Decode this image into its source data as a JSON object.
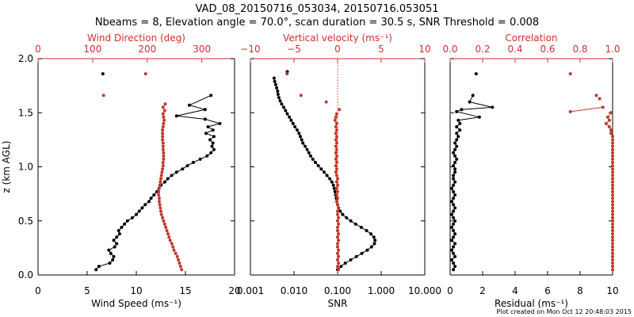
{
  "header": {
    "title_line1": "VAD_08_20150716_053034, 20150716.053051",
    "title_line2": "Nbeams = 8, Elevation angle = 70.0°, scan duration = 30.5 s, SNR Threshold = 0.008"
  },
  "footer": {
    "text": "Plot created on Mon Oct 12 20:48:03 2015"
  },
  "colors": {
    "black": "#000000",
    "red": "#c0392b",
    "redtop": "#d62d2d",
    "dotted": "#e03030"
  },
  "chart_data": [
    {
      "type": "line",
      "id": "panel1",
      "ylabel": "z (km AGL)",
      "ylim": [
        0,
        2.0
      ],
      "yticks": [
        0.0,
        0.5,
        1.0,
        1.5,
        2.0
      ],
      "ytick_labels": [
        "0.0",
        "0.5",
        "1.0",
        "1.5",
        "2.0"
      ],
      "bottom_axis": {
        "label": "Wind Speed (ms⁻¹)",
        "lim": [
          0,
          20
        ],
        "ticks": [
          0,
          5,
          10,
          15,
          20
        ],
        "tick_labels": [
          "0",
          "5",
          "10",
          "15",
          "20"
        ]
      },
      "top_axis": {
        "label": "Wind Direction (deg)",
        "lim": [
          0,
          360
        ],
        "ticks": [
          0,
          100,
          200,
          300
        ],
        "tick_labels": [
          "0",
          "100",
          "200",
          "300"
        ]
      },
      "series": [
        {
          "name": "Wind Speed",
          "axis": "bottom",
          "color": "black",
          "connected": true,
          "x": [
            5.9,
            6.2,
            7.3,
            7.6,
            7.7,
            7.4,
            7.2,
            7.8,
            8.0,
            7.7,
            8.0,
            8.3,
            8.2,
            8.5,
            8.8,
            9.1,
            9.6,
            10.0,
            10.3,
            10.6,
            10.9,
            11.3,
            11.5,
            11.8,
            12.1,
            12.3,
            12.5,
            12.9,
            13.2,
            13.6,
            14.1,
            14.7,
            15.2,
            15.8,
            16.5,
            17.2,
            17.6,
            17.9,
            17.7,
            17.8,
            17.5,
            17.9,
            17.1,
            17.8,
            17.3,
            18.5,
            17.0,
            14.1,
            17.0,
            15.4,
            17.6
          ],
          "y": [
            0.05,
            0.08,
            0.11,
            0.14,
            0.17,
            0.2,
            0.23,
            0.26,
            0.29,
            0.32,
            0.35,
            0.38,
            0.41,
            0.44,
            0.47,
            0.5,
            0.53,
            0.56,
            0.59,
            0.62,
            0.65,
            0.68,
            0.71,
            0.74,
            0.77,
            0.8,
            0.83,
            0.86,
            0.89,
            0.92,
            0.95,
            0.98,
            1.01,
            1.04,
            1.07,
            1.1,
            1.13,
            1.16,
            1.19,
            1.22,
            1.25,
            1.28,
            1.31,
            1.34,
            1.37,
            1.4,
            1.44,
            1.47,
            1.53,
            1.57,
            1.66
          ]
        },
        {
          "name": "Wind Speed (isolated)",
          "axis": "bottom",
          "color": "black",
          "connected": false,
          "x": [
            6.6
          ],
          "y": [
            1.86
          ]
        },
        {
          "name": "Wind Direction",
          "axis": "top",
          "color": "red",
          "connected": true,
          "x": [
            263,
            261,
            259,
            257,
            255,
            252,
            249,
            247,
            245,
            242,
            240,
            238,
            236,
            234,
            232,
            230,
            228,
            226,
            225,
            224,
            223,
            222,
            222,
            221,
            221,
            222,
            223,
            224,
            225,
            226,
            227,
            228,
            229,
            229,
            230,
            230,
            230,
            229,
            229,
            229,
            228,
            228,
            228,
            228,
            229,
            230,
            231,
            230,
            229,
            232,
            229,
            233
          ],
          "y": [
            0.05,
            0.08,
            0.11,
            0.14,
            0.17,
            0.2,
            0.23,
            0.26,
            0.29,
            0.32,
            0.35,
            0.38,
            0.41,
            0.44,
            0.47,
            0.5,
            0.53,
            0.56,
            0.59,
            0.62,
            0.65,
            0.68,
            0.71,
            0.74,
            0.77,
            0.8,
            0.83,
            0.86,
            0.89,
            0.92,
            0.95,
            0.98,
            1.01,
            1.04,
            1.07,
            1.1,
            1.13,
            1.16,
            1.19,
            1.22,
            1.25,
            1.28,
            1.31,
            1.34,
            1.37,
            1.4,
            1.43,
            1.46,
            1.49,
            1.52,
            1.55,
            1.58
          ]
        },
        {
          "name": "Wind Direction (isolated)",
          "axis": "top",
          "color": "red",
          "connected": false,
          "x": [
            120,
            197
          ],
          "y": [
            1.66,
            1.86
          ]
        }
      ]
    },
    {
      "type": "line",
      "id": "panel2",
      "ylim": [
        0,
        2.0
      ],
      "bottom_axis": {
        "label": "SNR",
        "scale": "log",
        "lim": [
          0.001,
          10.0
        ],
        "ticks": [
          0.001,
          0.01,
          0.1,
          1.0,
          10.0
        ],
        "tick_labels": [
          "0.001",
          "0.010",
          "0.100",
          "1.000",
          "10.000"
        ]
      },
      "top_axis": {
        "label": "Vertical velocity (ms⁻¹)",
        "lim": [
          -10,
          10
        ],
        "ticks": [
          -10,
          -5,
          0,
          5,
          10
        ],
        "tick_labels": [
          "−10",
          "−5",
          "0",
          "5",
          "10"
        ]
      },
      "series": [
        {
          "name": "SNR",
          "axis": "bottom",
          "color": "black",
          "connected": true,
          "x": [
            0.1,
            0.12,
            0.15,
            0.2,
            0.27,
            0.36,
            0.48,
            0.6,
            0.7,
            0.72,
            0.68,
            0.58,
            0.46,
            0.35,
            0.26,
            0.2,
            0.16,
            0.13,
            0.115,
            0.105,
            0.1,
            0.096,
            0.093,
            0.09,
            0.087,
            0.084,
            0.08,
            0.074,
            0.066,
            0.057,
            0.049,
            0.042,
            0.036,
            0.031,
            0.027,
            0.024,
            0.022,
            0.02,
            0.018,
            0.016,
            0.015,
            0.014,
            0.013,
            0.0118,
            0.0105,
            0.0095,
            0.0086,
            0.0078,
            0.007,
            0.0064,
            0.0058,
            0.0052,
            0.0048,
            0.0045,
            0.0043,
            0.0042,
            0.004,
            0.0038,
            0.0036,
            0.0035
          ],
          "y": [
            0.05,
            0.08,
            0.11,
            0.14,
            0.17,
            0.2,
            0.23,
            0.26,
            0.29,
            0.32,
            0.35,
            0.38,
            0.41,
            0.44,
            0.47,
            0.5,
            0.53,
            0.56,
            0.59,
            0.62,
            0.65,
            0.68,
            0.71,
            0.74,
            0.77,
            0.8,
            0.83,
            0.86,
            0.89,
            0.92,
            0.95,
            0.98,
            1.01,
            1.04,
            1.07,
            1.1,
            1.13,
            1.16,
            1.19,
            1.22,
            1.25,
            1.28,
            1.31,
            1.34,
            1.37,
            1.4,
            1.43,
            1.46,
            1.49,
            1.52,
            1.55,
            1.58,
            1.61,
            1.64,
            1.67,
            1.7,
            1.73,
            1.76,
            1.79,
            1.82
          ]
        },
        {
          "name": "SNR (isolated)",
          "axis": "bottom",
          "color": "black",
          "connected": false,
          "x": [
            0.007
          ],
          "y": [
            1.88
          ]
        },
        {
          "name": "Vertical velocity",
          "axis": "top",
          "color": "red",
          "connected": true,
          "x": [
            0.1,
            0.0,
            0.1,
            0.0,
            0.1,
            0.0,
            0.1,
            0.0,
            0.0,
            0.1,
            0.0,
            0.1,
            0.0,
            0.0,
            0.1,
            0.0,
            0.1,
            0.0,
            0.0,
            0.1,
            0.0,
            -0.1,
            0.0,
            -0.1,
            0.0,
            -0.1,
            0.0,
            -0.1,
            0.0,
            -0.1,
            -0.2,
            -0.1,
            -0.2,
            -0.1,
            -0.2,
            -0.1,
            -0.2,
            -0.1,
            -0.2,
            -0.1,
            -0.2,
            -0.1,
            -0.2,
            -0.1,
            -0.2,
            -0.1,
            -0.3,
            -0.2,
            -0.1
          ],
          "y": [
            0.05,
            0.08,
            0.11,
            0.14,
            0.17,
            0.2,
            0.23,
            0.26,
            0.29,
            0.32,
            0.35,
            0.38,
            0.41,
            0.44,
            0.47,
            0.5,
            0.53,
            0.56,
            0.59,
            0.62,
            0.65,
            0.68,
            0.71,
            0.74,
            0.77,
            0.8,
            0.83,
            0.86,
            0.89,
            0.92,
            0.95,
            0.98,
            1.01,
            1.04,
            1.07,
            1.1,
            1.13,
            1.16,
            1.19,
            1.22,
            1.25,
            1.28,
            1.31,
            1.34,
            1.37,
            1.4,
            1.43,
            1.46,
            1.49
          ]
        },
        {
          "name": "Vertical velocity (isolated)",
          "axis": "top",
          "color": "red",
          "connected": false,
          "x": [
            -4.2,
            -5.8,
            -1.3,
            0.2
          ],
          "y": [
            1.66,
            1.86,
            1.6,
            1.53
          ]
        },
        {
          "name": "Zero vertical velocity",
          "axis": "top",
          "color": "red",
          "style": "dotted",
          "connected": true,
          "x": [
            0,
            0
          ],
          "y": [
            0,
            2.0
          ]
        }
      ]
    },
    {
      "type": "line",
      "id": "panel3",
      "ylim": [
        0,
        2.0
      ],
      "bottom_axis": {
        "label": "Residual (ms⁻¹)",
        "lim": [
          0,
          10
        ],
        "ticks": [
          0,
          2,
          4,
          6,
          8,
          10
        ],
        "tick_labels": [
          "0",
          "2",
          "4",
          "6",
          "8",
          "10"
        ]
      },
      "top_axis": {
        "label": "Correlation",
        "lim": [
          0,
          1.0
        ],
        "ticks": [
          0.0,
          0.2,
          0.4,
          0.6,
          0.8,
          1.0
        ],
        "tick_labels": [
          "0.0",
          "0.2",
          "0.4",
          "0.6",
          "0.8",
          "1.0"
        ]
      },
      "series": [
        {
          "name": "Residual",
          "axis": "bottom",
          "color": "black",
          "connected": true,
          "x": [
            0.2,
            0.3,
            0.2,
            0.1,
            0.3,
            0.2,
            0.1,
            0.2,
            0.3,
            0.1,
            0.2,
            0.3,
            0.2,
            0.1,
            0.2,
            0.3,
            0.2,
            0.1,
            0.2,
            0.3,
            0.2,
            0.1,
            0.2,
            0.3,
            0.2,
            0.1,
            0.2,
            0.3,
            0.2,
            0.2,
            0.3,
            0.3,
            0.2,
            0.3,
            0.4,
            0.3,
            0.2,
            0.3,
            0.4,
            0.3,
            0.4,
            0.5,
            0.4,
            0.6,
            0.4,
            0.6,
            0.5,
            1.8,
            0.4,
            0.7,
            2.6,
            1.2,
            1.4
          ],
          "y": [
            0.05,
            0.08,
            0.11,
            0.14,
            0.17,
            0.2,
            0.23,
            0.26,
            0.29,
            0.32,
            0.35,
            0.38,
            0.41,
            0.44,
            0.47,
            0.5,
            0.53,
            0.56,
            0.59,
            0.62,
            0.65,
            0.68,
            0.71,
            0.74,
            0.77,
            0.8,
            0.83,
            0.86,
            0.89,
            0.92,
            0.95,
            0.98,
            1.01,
            1.04,
            1.07,
            1.1,
            1.13,
            1.16,
            1.19,
            1.22,
            1.25,
            1.28,
            1.31,
            1.34,
            1.37,
            1.4,
            1.43,
            1.46,
            1.51,
            1.53,
            1.55,
            1.6,
            1.66
          ]
        },
        {
          "name": "Residual (isolated)",
          "axis": "bottom",
          "color": "black",
          "connected": false,
          "x": [
            1.6
          ],
          "y": [
            1.86
          ]
        },
        {
          "name": "Correlation",
          "axis": "top",
          "color": "red",
          "connected": true,
          "x": [
            1.0,
            1.0,
            1.0,
            1.0,
            1.0,
            1.0,
            1.0,
            1.0,
            1.0,
            1.0,
            1.0,
            1.0,
            1.0,
            1.0,
            1.0,
            1.0,
            1.0,
            1.0,
            1.0,
            1.0,
            1.0,
            1.0,
            1.0,
            1.0,
            1.0,
            1.0,
            1.0,
            1.0,
            1.0,
            1.0,
            1.0,
            1.0,
            1.0,
            1.0,
            1.0,
            1.0,
            1.0,
            1.0,
            1.0,
            1.0,
            1.0,
            1.0,
            0.99,
            0.99,
            0.98,
            0.96,
            0.98,
            0.97,
            0.99
          ],
          "y": [
            0.05,
            0.08,
            0.11,
            0.14,
            0.17,
            0.2,
            0.23,
            0.26,
            0.29,
            0.32,
            0.35,
            0.38,
            0.41,
            0.44,
            0.47,
            0.5,
            0.53,
            0.56,
            0.59,
            0.62,
            0.65,
            0.68,
            0.71,
            0.74,
            0.77,
            0.8,
            0.83,
            0.86,
            0.89,
            0.92,
            0.95,
            0.98,
            1.01,
            1.04,
            1.07,
            1.1,
            1.13,
            1.16,
            1.19,
            1.22,
            1.25,
            1.28,
            1.31,
            1.34,
            1.37,
            1.4,
            1.43,
            1.46,
            1.5
          ]
        },
        {
          "name": "Correlation (segment)",
          "axis": "top",
          "color": "red",
          "connected": true,
          "x": [
            0.74,
            0.94
          ],
          "y": [
            1.51,
            1.55
          ]
        },
        {
          "name": "Correlation (isolated)",
          "axis": "top",
          "color": "red",
          "connected": false,
          "x": [
            0.74,
            0.9,
            0.92
          ],
          "y": [
            1.86,
            1.66,
            1.63
          ]
        }
      ]
    }
  ]
}
